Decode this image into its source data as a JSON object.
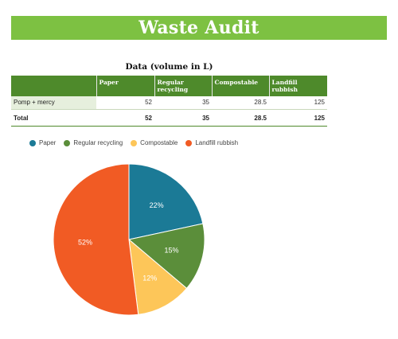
{
  "header": {
    "title": "Waste Audit"
  },
  "table": {
    "title": "Data (volume in L)",
    "columns": [
      "",
      "Paper",
      "Regular recycling",
      "Compostable",
      "Landfill rubbish"
    ],
    "rows": [
      {
        "label": "Pomp + mercy",
        "values": [
          "52",
          "35",
          "28.5",
          "125"
        ]
      },
      {
        "label": "Total",
        "values": [
          "52",
          "35",
          "28.5",
          "125"
        ]
      }
    ]
  },
  "chart_data": {
    "type": "pie",
    "categories": [
      "Paper",
      "Regular recycling",
      "Compostable",
      "Landfill rubbish"
    ],
    "values": [
      52,
      35,
      28.5,
      125
    ],
    "data_labels": [
      "22%",
      "15%",
      "12%",
      "52%"
    ],
    "colors": [
      "#1b7a96",
      "#5b8e3a",
      "#fdc659",
      "#f15b24"
    ],
    "legend_position": "top-left",
    "title": ""
  }
}
